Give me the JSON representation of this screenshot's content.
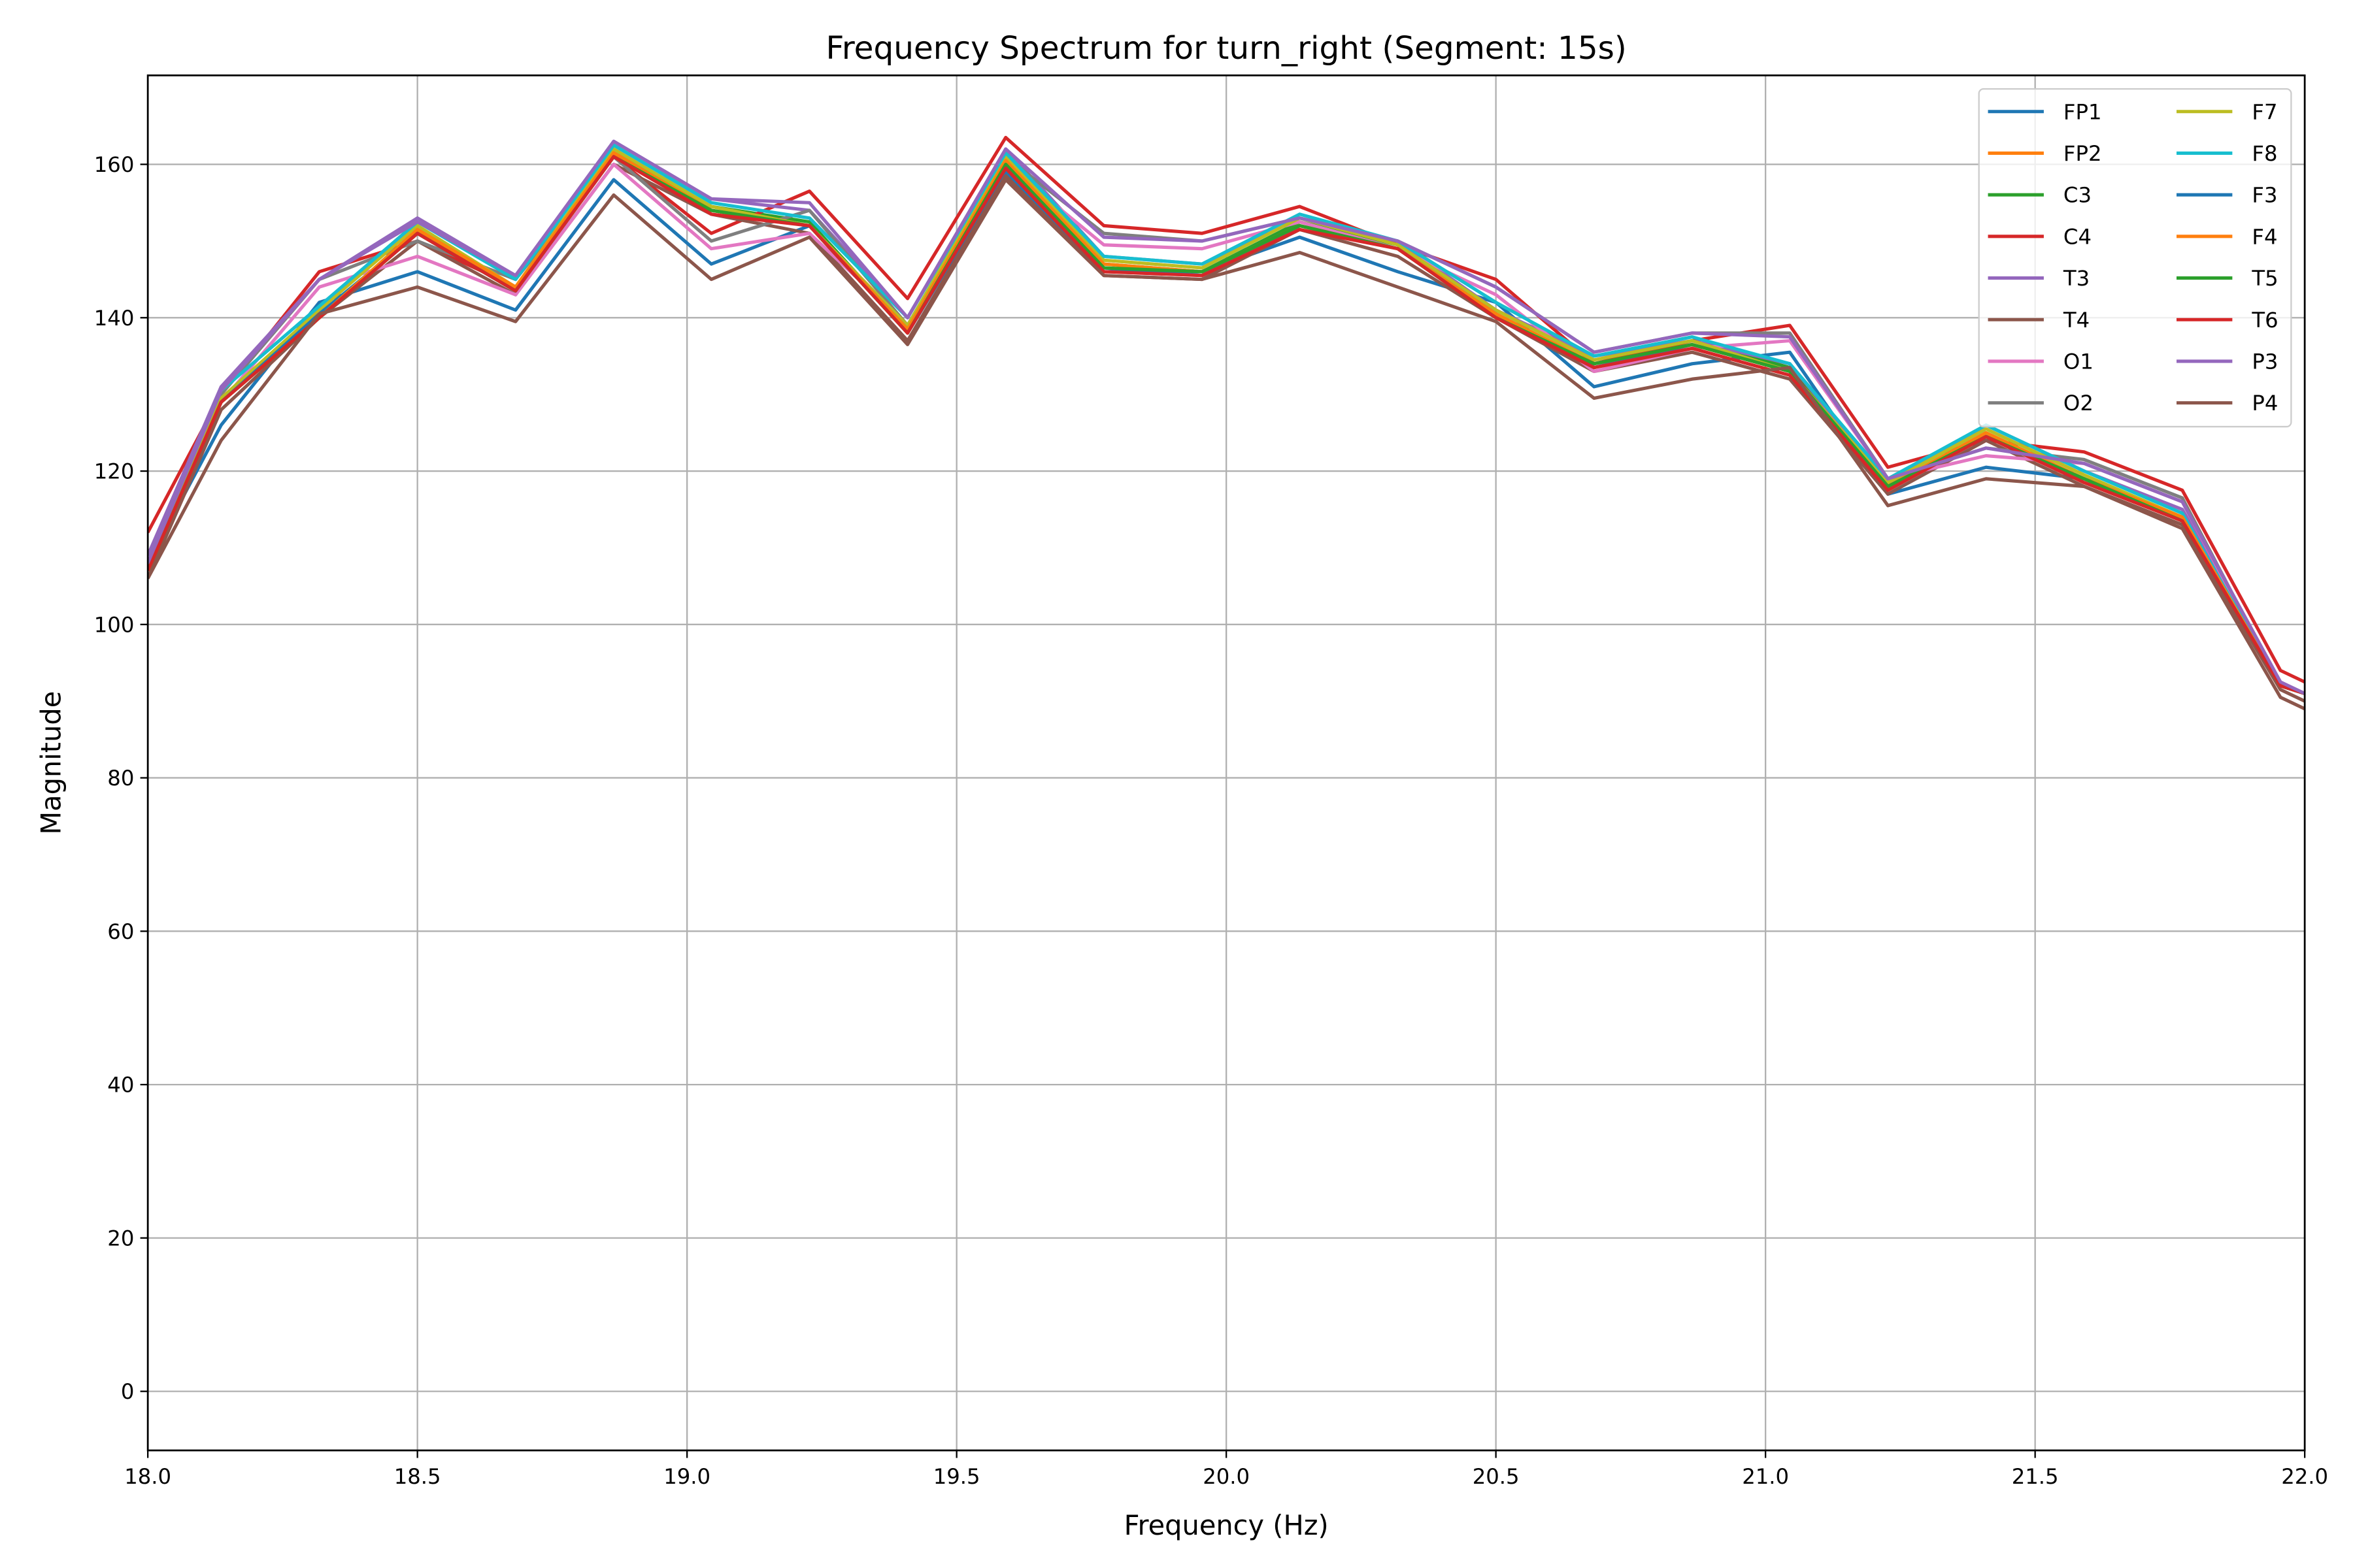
{
  "chart_data": {
    "type": "line",
    "title": "Frequency Spectrum for turn_right (Segment: 15s)",
    "xlabel": "Frequency (Hz)",
    "ylabel": "Magnitude",
    "xlim": [
      18.0,
      22.0
    ],
    "ylim": [
      -7.7,
      171.6
    ],
    "xticks": [
      18.0,
      18.5,
      19.0,
      19.5,
      20.0,
      20.5,
      21.0,
      21.5,
      22.0
    ],
    "xtick_labels": [
      "18.0",
      "18.5",
      "19.0",
      "19.5",
      "20.0",
      "20.5",
      "21.0",
      "21.5",
      "22.0"
    ],
    "yticks": [
      0,
      20,
      40,
      60,
      80,
      100,
      120,
      140,
      160
    ],
    "ytick_labels": [
      "0",
      "20",
      "40",
      "60",
      "80",
      "100",
      "120",
      "140",
      "160"
    ],
    "grid": true,
    "legend_placement": "top-right",
    "legend_columns": 2,
    "x": [
      18.0,
      18.136,
      18.318,
      18.5,
      18.682,
      18.864,
      19.045,
      19.227,
      19.409,
      19.591,
      19.773,
      19.955,
      20.136,
      20.318,
      20.5,
      20.682,
      20.864,
      21.045,
      21.227,
      21.409,
      21.591,
      21.773,
      21.955,
      22.0
    ],
    "series": [
      {
        "name": "FP1",
        "color": "#1f77b4",
        "values": [
          108,
          126,
          142,
          146,
          141,
          158,
          147,
          152,
          138,
          159,
          146,
          146,
          150.5,
          146,
          142,
          131,
          134,
          135.5,
          117,
          120.5,
          119,
          114,
          92,
          91
        ]
      },
      {
        "name": "FP2",
        "color": "#ff7f0e",
        "values": [
          107,
          129,
          140,
          151,
          143.5,
          161,
          154,
          152,
          138,
          160,
          146.5,
          145.5,
          152,
          149,
          140,
          133.5,
          136.5,
          133,
          118,
          124.5,
          119,
          113.5,
          92,
          91
        ]
      },
      {
        "name": "C3",
        "color": "#2ca02c",
        "values": [
          107,
          129.5,
          140,
          151.5,
          144,
          161.5,
          154.5,
          152.5,
          138.5,
          160,
          147,
          146,
          152.5,
          149.5,
          140.5,
          134,
          137,
          133.5,
          118,
          125,
          119,
          114,
          92,
          91
        ]
      },
      {
        "name": "C4",
        "color": "#d62728",
        "values": [
          112,
          130,
          146,
          150,
          144,
          161,
          151,
          156.5,
          142.5,
          163.5,
          152,
          151,
          154.5,
          149.5,
          145,
          134,
          137,
          139,
          120.5,
          124,
          122.5,
          117.5,
          94,
          92.5
        ]
      },
      {
        "name": "T3",
        "color": "#9467bd",
        "values": [
          109,
          131,
          145,
          153,
          145.5,
          163,
          155.5,
          154,
          140,
          162,
          148,
          147,
          153,
          150,
          141,
          135,
          137,
          134,
          118.5,
          126,
          120,
          115,
          92.5,
          91
        ]
      },
      {
        "name": "T4",
        "color": "#8c564b",
        "values": [
          106,
          128,
          140,
          150,
          143,
          160,
          153.5,
          151,
          137,
          158.5,
          145.5,
          145,
          151.5,
          148,
          140,
          133,
          135.5,
          132,
          117,
          124,
          118,
          113,
          91.5,
          90
        ]
      },
      {
        "name": "O1",
        "color": "#e377c2",
        "values": [
          108,
          129,
          144,
          148,
          143,
          160,
          149,
          151,
          139,
          160,
          149.5,
          149,
          152.5,
          149,
          143,
          133,
          136,
          137,
          119,
          122,
          121,
          116,
          92,
          91
        ]
      },
      {
        "name": "O2",
        "color": "#7f7f7f",
        "values": [
          108,
          130,
          145,
          150,
          145,
          161,
          150,
          154,
          139,
          161,
          151,
          150,
          153,
          150,
          144,
          135.5,
          138,
          138,
          119,
          123,
          121.5,
          116.5,
          92,
          91
        ]
      },
      {
        "name": "F7",
        "color": "#bcbd22",
        "values": [
          107,
          129.5,
          141,
          152,
          144,
          162,
          154.5,
          152,
          139,
          161,
          147.5,
          146.5,
          153,
          149.5,
          141,
          134.5,
          137,
          133,
          118.5,
          125.5,
          119.5,
          114,
          92,
          91
        ]
      },
      {
        "name": "F8",
        "color": "#17becf",
        "values": [
          108,
          130.5,
          141.5,
          152.5,
          145,
          162.5,
          155,
          153,
          140,
          161.5,
          148,
          147,
          153.5,
          150,
          142,
          135,
          137.5,
          134,
          119,
          126,
          120,
          114.5,
          92,
          91
        ]
      },
      {
        "name": "F3",
        "color": "#1f77b4",
        "values": [
          107,
          129,
          140.5,
          151,
          143.5,
          161,
          154,
          152,
          138.5,
          160,
          146.5,
          145.5,
          152,
          149,
          140.5,
          133.5,
          136.5,
          133,
          118,
          124.5,
          119,
          113.5,
          92,
          91
        ]
      },
      {
        "name": "F4",
        "color": "#ff7f0e",
        "values": [
          107,
          129,
          140,
          151.5,
          144,
          161.5,
          154,
          152,
          138.5,
          160.5,
          147,
          146,
          152,
          149,
          140.5,
          134,
          136.5,
          133,
          118,
          125,
          119,
          114,
          92,
          91
        ]
      },
      {
        "name": "T5",
        "color": "#2ca02c",
        "values": [
          107,
          129,
          140,
          151,
          143.5,
          161,
          154,
          152,
          138,
          160,
          146.5,
          146,
          152,
          149,
          140,
          134,
          136.5,
          133,
          118,
          124.5,
          119,
          113.5,
          92,
          91
        ]
      },
      {
        "name": "T6",
        "color": "#d62728",
        "values": [
          107,
          129,
          140,
          151,
          143.5,
          161,
          153.5,
          152,
          138,
          159.5,
          146,
          145.5,
          151.5,
          149,
          140,
          133.5,
          136,
          132.5,
          117.5,
          124.5,
          118.5,
          113.5,
          92,
          91
        ]
      },
      {
        "name": "P3",
        "color": "#9467bd",
        "values": [
          108,
          130.5,
          145,
          152.5,
          145.5,
          163,
          155.5,
          155,
          140,
          162,
          150.5,
          150,
          153,
          150,
          144,
          135.5,
          138,
          137.5,
          119,
          123,
          121,
          116,
          92.5,
          91
        ]
      },
      {
        "name": "P4",
        "color": "#8c564b",
        "values": [
          106,
          124,
          140.5,
          144,
          139.5,
          156,
          145,
          150.5,
          136.5,
          158,
          145.5,
          145,
          148.5,
          144,
          139.5,
          129.5,
          132,
          133.5,
          115.5,
          119,
          118,
          112.5,
          90.5,
          89
        ]
      }
    ]
  }
}
